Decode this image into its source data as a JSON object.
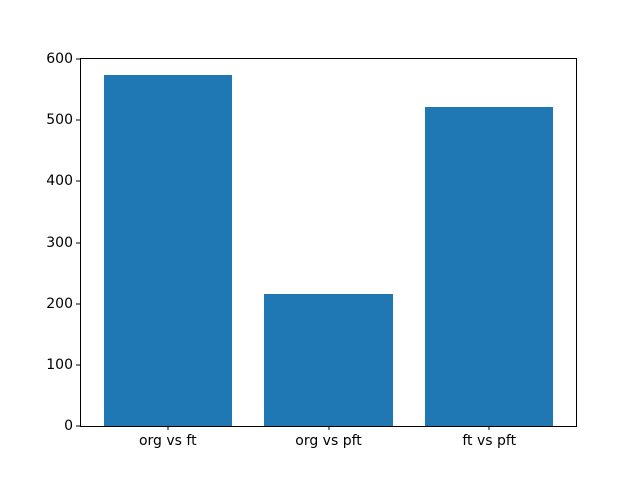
{
  "chart_data": {
    "type": "bar",
    "title": "",
    "xlabel": "",
    "ylabel": "",
    "categories": [
      "org vs ft",
      "org vs pft",
      "ft vs pft"
    ],
    "values": [
      574,
      216,
      521
    ],
    "yticks": [
      0,
      100,
      200,
      300,
      400,
      500,
      600
    ],
    "ylim": [
      0,
      600
    ],
    "bar_color": "#1f77b4",
    "spine_color": "#000000",
    "background_color": "#ffffff",
    "grid": false,
    "legend_position": "none",
    "bar_width_fraction": 0.8,
    "x_margin_fraction": 0.05
  }
}
